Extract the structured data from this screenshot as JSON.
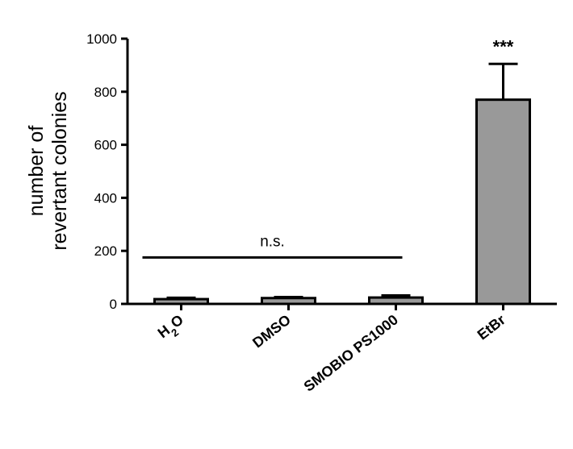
{
  "chart_data": {
    "type": "bar",
    "categories": [
      "H2O",
      "DMSO",
      "SMOBIO PS1000",
      "EtBr"
    ],
    "values": [
      18,
      22,
      24,
      770
    ],
    "errors": [
      5,
      4,
      8,
      135
    ],
    "ylabel_lines": [
      "number of",
      "revertant colonies"
    ],
    "ylim": [
      0,
      1000
    ],
    "yticks": [
      0,
      200,
      400,
      600,
      800,
      1000
    ],
    "bar_color": "#999999",
    "grid": false,
    "legend": "none",
    "annotations": [
      {
        "text": "n.s.",
        "from_category": 0,
        "to_category": 2,
        "y": 175
      },
      {
        "text": "***",
        "category": 3
      }
    ]
  }
}
